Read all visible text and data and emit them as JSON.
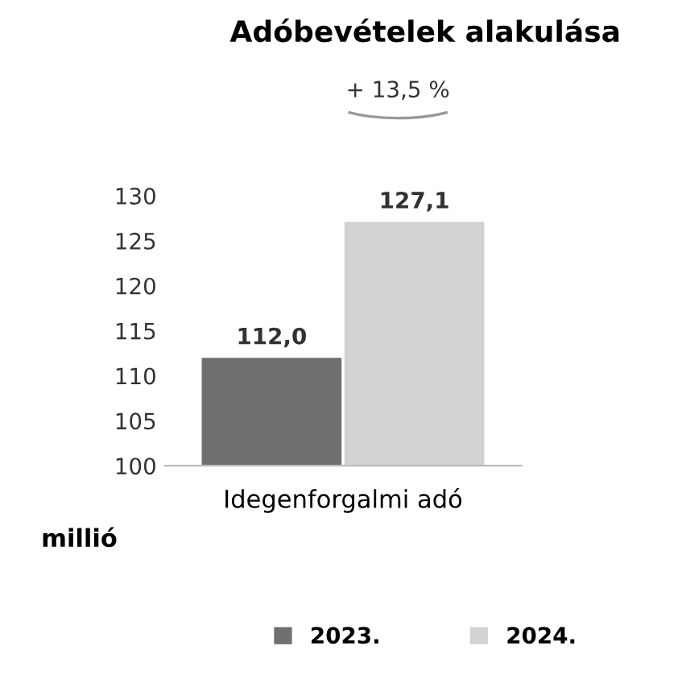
{
  "chart_data": {
    "type": "bar",
    "title": "Adóbevételek alakulása",
    "ylabel": "millió",
    "categories": [
      "Idegenforgalmi adó"
    ],
    "series": [
      {
        "name": "2023.",
        "color": "#707070",
        "values": [
          112.0
        ],
        "value_labels": [
          "112,0"
        ]
      },
      {
        "name": "2024.",
        "color": "#d2d2d2",
        "values": [
          127.1
        ],
        "value_labels": [
          "127,1"
        ]
      }
    ],
    "annotations": [
      "+ 13,5 %"
    ],
    "ylim": [
      100,
      130
    ],
    "yticks": [
      100,
      105,
      110,
      115,
      120,
      125,
      130
    ],
    "grid": false,
    "legend": "bottom"
  }
}
